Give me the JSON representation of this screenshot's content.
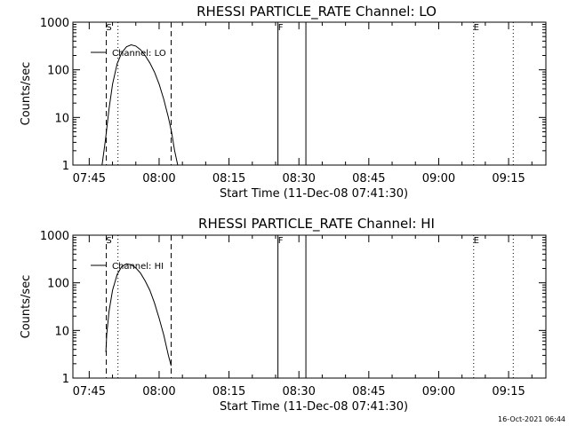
{
  "chart_data": [
    {
      "type": "line",
      "title": "RHESSI PARTICLE_RATE Channel: LO",
      "xlabel": "Start Time (11-Dec-08 07:41:30)",
      "ylabel": "Counts/sec",
      "yscale": "log",
      "ylim": [
        1,
        1000
      ],
      "xlim": [
        "07:41:30",
        "09:23:00"
      ],
      "x_ticks": [
        "07:45",
        "08:00",
        "08:15",
        "08:30",
        "08:45",
        "09:00",
        "09:15"
      ],
      "y_ticks": [
        "1",
        "10",
        "100",
        "1000"
      ],
      "grid": false,
      "legend": "top-left",
      "series": [
        {
          "name": "Channel: LO",
          "x": [
            "07:47:45",
            "07:48:30",
            "07:49:15",
            "07:50:00",
            "07:51:00",
            "07:52:00",
            "07:53:00",
            "07:54:00",
            "07:55:00",
            "07:56:00",
            "07:57:00",
            "07:58:00",
            "07:59:00",
            "08:00:00",
            "08:01:00",
            "08:02:00",
            "08:02:40",
            "08:03:20",
            "08:04:00"
          ],
          "y": [
            1,
            3.5,
            15,
            50,
            135,
            230,
            305,
            335,
            315,
            265,
            200,
            140,
            90,
            50,
            24,
            10,
            5,
            2,
            1
          ]
        }
      ],
      "vlines": [
        {
          "t": "07:48:40",
          "style": "dashed",
          "label": "S"
        },
        {
          "t": "07:51:10",
          "style": "dotted",
          "label": ""
        },
        {
          "t": "08:02:35",
          "style": "dashed",
          "label": ""
        },
        {
          "t": "08:25:30",
          "style": "solid",
          "label": "F"
        },
        {
          "t": "08:31:30",
          "style": "solid",
          "label": ""
        },
        {
          "t": "09:07:30",
          "style": "dotted",
          "label": "E"
        },
        {
          "t": "09:16:00",
          "style": "dotted",
          "label": ""
        }
      ]
    },
    {
      "type": "line",
      "title": "RHESSI PARTICLE_RATE Channel: HI",
      "xlabel": "Start Time (11-Dec-08 07:41:30)",
      "ylabel": "Counts/sec",
      "yscale": "log",
      "ylim": [
        1,
        1000
      ],
      "xlim": [
        "07:41:30",
        "09:23:00"
      ],
      "x_ticks": [
        "07:45",
        "08:00",
        "08:15",
        "08:30",
        "08:45",
        "09:00",
        "09:15"
      ],
      "y_ticks": [
        "1",
        "10",
        "100",
        "1000"
      ],
      "grid": false,
      "legend": "top-left",
      "series": [
        {
          "name": "Channel: HI",
          "x": [
            "07:48:35",
            "07:48:45",
            "07:49:15",
            "07:50:00",
            "07:51:00",
            "07:52:00",
            "07:53:00",
            "07:54:00",
            "07:55:00",
            "07:56:00",
            "07:57:00",
            "07:58:00",
            "07:59:00",
            "08:00:00",
            "08:01:00",
            "08:02:00",
            "08:02:35"
          ],
          "y": [
            3.5,
            8,
            25,
            70,
            150,
            220,
            250,
            240,
            205,
            160,
            110,
            70,
            38,
            18,
            8,
            3,
            1.8
          ]
        }
      ],
      "vlines": [
        {
          "t": "07:48:40",
          "style": "dashed",
          "label": "S"
        },
        {
          "t": "07:51:10",
          "style": "dotted",
          "label": ""
        },
        {
          "t": "08:02:35",
          "style": "dashed",
          "label": ""
        },
        {
          "t": "08:25:30",
          "style": "solid",
          "label": "F"
        },
        {
          "t": "08:31:30",
          "style": "solid",
          "label": ""
        },
        {
          "t": "09:07:30",
          "style": "dotted",
          "label": "E"
        },
        {
          "t": "09:16:00",
          "style": "dotted",
          "label": ""
        }
      ]
    }
  ],
  "footer_stamp": "16-Oct-2021 06:44"
}
